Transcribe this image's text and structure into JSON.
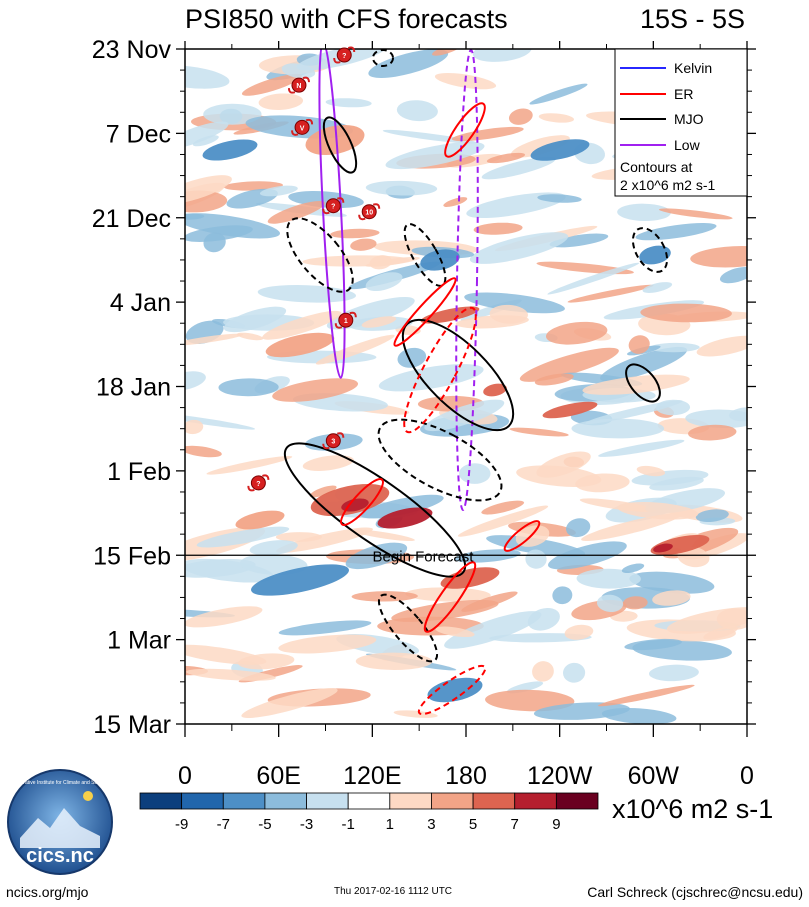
{
  "chart_data": {
    "type": "heatmap",
    "title": "PSI850 with CFS forecasts",
    "lat_band": "15S - 5S",
    "y_tick_labels": [
      "23 Nov",
      "7 Dec",
      "21 Dec",
      "4 Jan",
      "18 Jan",
      "1 Feb",
      "15 Feb",
      "1 Mar",
      "15 Mar"
    ],
    "x_tick_labels": [
      "0",
      "60E",
      "120E",
      "180",
      "120W",
      "60W",
      "0"
    ],
    "x_tick_degrees": [
      0,
      60,
      120,
      180,
      240,
      300,
      360
    ],
    "y_tick_days": [
      0,
      14,
      28,
      42,
      56,
      70,
      84,
      98,
      112
    ],
    "xlim": [
      0,
      360
    ],
    "ylim_days": [
      0,
      112
    ],
    "forecast_start_day": 84,
    "forecast_label": "Begin Forecast",
    "colorbar": {
      "levels": [
        "-9",
        "-7",
        "-5",
        "-3",
        "-1",
        "1",
        "3",
        "5",
        "7",
        "9"
      ],
      "colors": [
        "#0c3f7d",
        "#2166ac",
        "#4d8fc6",
        "#8cbcdc",
        "#c7e0ef",
        "#ffffff",
        "#fdd9c4",
        "#f2a487",
        "#dd6450",
        "#b51f2e",
        "#6a0020"
      ],
      "units": "x10^6 m2 s-1"
    },
    "legend": {
      "entries": [
        {
          "name": "Kelvin",
          "color": "#2727ff"
        },
        {
          "name": "ER",
          "color": "#ff0000"
        },
        {
          "name": "MJO",
          "color": "#000000"
        },
        {
          "name": "Low",
          "color": "#a020f0"
        }
      ],
      "note_line1": "Contours at",
      "note_line2": "2 x10^6 m2 s-1",
      "placement": "top-right"
    },
    "storms": [
      {
        "label": "?",
        "lon": 102,
        "day": 1
      },
      {
        "label": "N",
        "lon": 73,
        "day": 6
      },
      {
        "label": "V",
        "lon": 75,
        "day": 13
      },
      {
        "label": "?",
        "lon": 95,
        "day": 26
      },
      {
        "label": "10",
        "lon": 118,
        "day": 27
      },
      {
        "label": "1",
        "lon": 103,
        "day": 45
      },
      {
        "label": "3",
        "lon": 95,
        "day": 65
      },
      {
        "label": "?",
        "lon": 47,
        "day": 72
      }
    ]
  },
  "footer": {
    "logo_text": "cics.nc",
    "logo_ring_text": "Cooperative Institute for Climate and Satellites",
    "url": "ncics.org/mjo",
    "timestamp": "Thu 2017-02-16 1112 UTC",
    "author": "Carl Schreck (cjschrec@ncsu.edu)"
  }
}
